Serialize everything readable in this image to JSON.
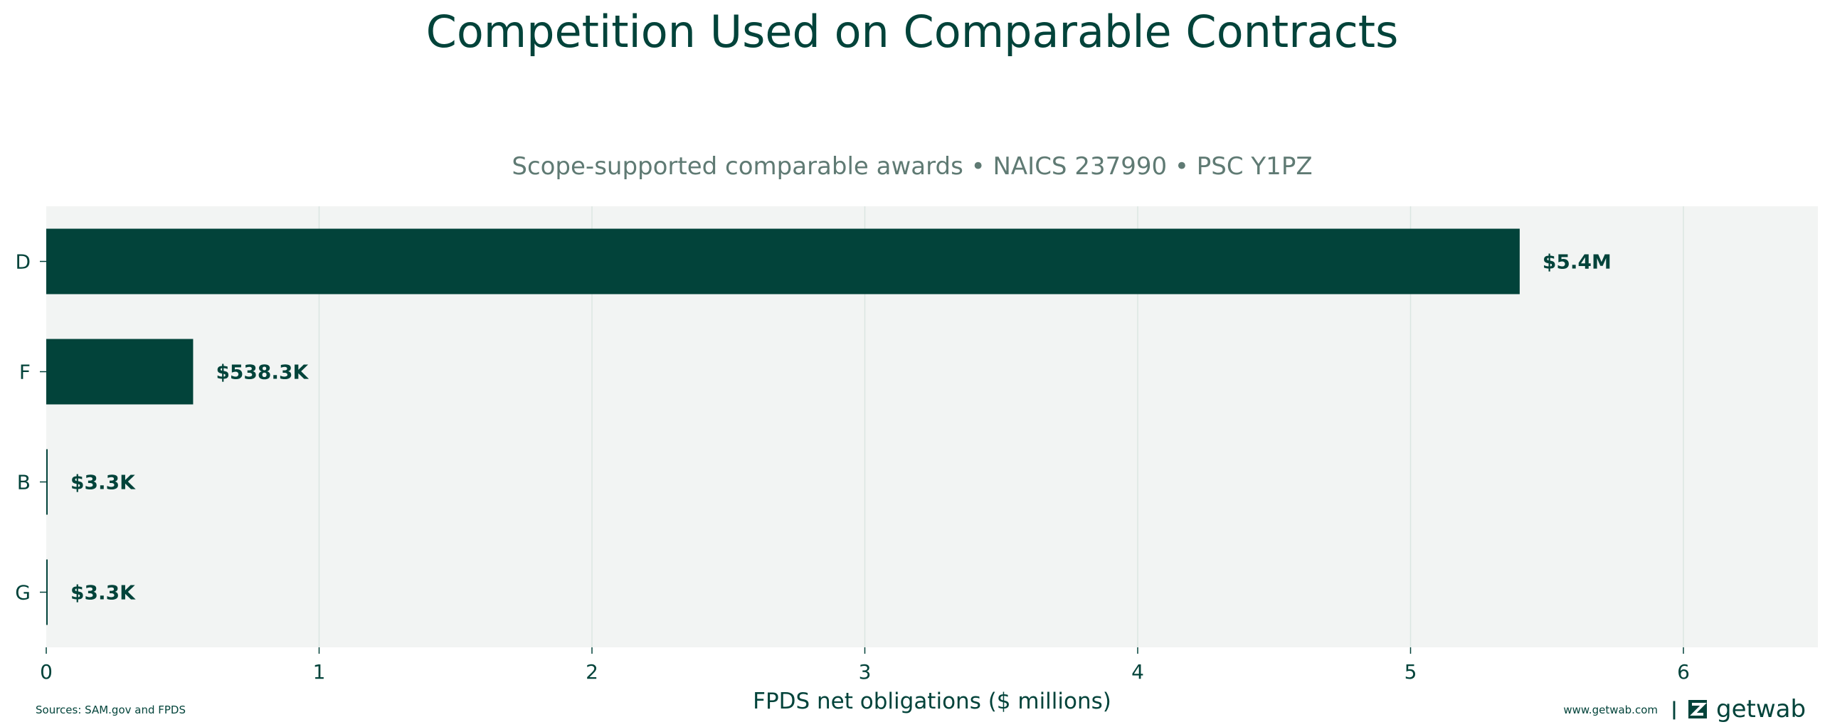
{
  "chart_data": {
    "type": "bar",
    "orientation": "horizontal",
    "title": "Competition Used on Comparable Contracts",
    "subtitle": "Scope-supported comparable awards • NAICS 237990 • PSC Y1PZ",
    "xlabel": "FPDS net obligations ($ millions)",
    "ylabel": "",
    "xlim": [
      0,
      6.5
    ],
    "xticks": [
      0,
      1,
      2,
      3,
      4,
      5,
      6
    ],
    "categories": [
      "D",
      "F",
      "B",
      "G"
    ],
    "values": [
      5.4,
      0.5383,
      0.0033,
      0.0033
    ],
    "data_labels": [
      "$5.4M",
      "$538.3K",
      "$3.3K",
      "$3.3K"
    ],
    "grid": "vertical",
    "colors": {
      "bar": "#02433a",
      "plot_background": "#f2f4f3",
      "grid": "#dbe6e2",
      "text": "#02433a",
      "subtitle": "#5f7a73"
    }
  },
  "footer": {
    "sources": "Sources: SAM.gov and FPDS",
    "website": "www.getwab.com",
    "separator": "|",
    "brand": "getwab",
    "brand_icon": "getwab-logo-icon"
  }
}
